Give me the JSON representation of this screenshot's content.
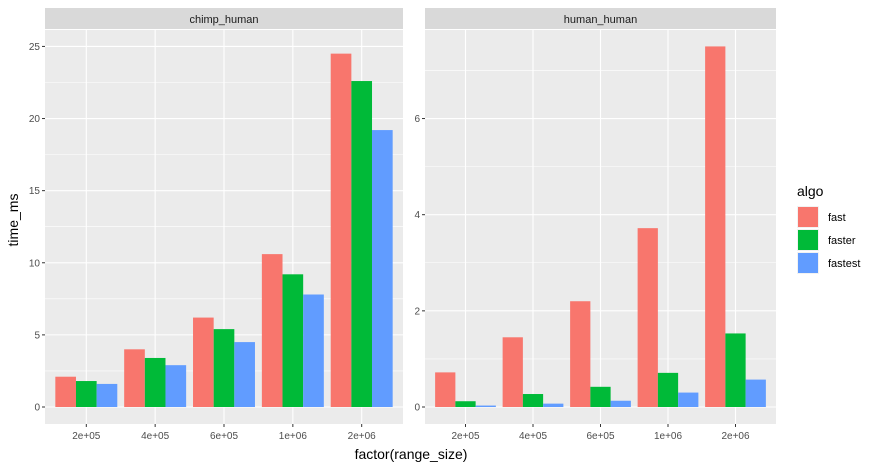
{
  "chart_data": {
    "type": "bar",
    "xlabel": "factor(range_size)",
    "ylabel": "time_ms",
    "categories": [
      "2e+05",
      "4e+05",
      "6e+05",
      "1e+06",
      "2e+06"
    ],
    "legend": {
      "title": "algo",
      "placement": "right",
      "entries": [
        {
          "name": "fast",
          "color": "#F8766D"
        },
        {
          "name": "faster",
          "color": "#00BA38"
        },
        {
          "name": "fastest",
          "color": "#619CFF"
        }
      ]
    },
    "grid": true,
    "facets": [
      {
        "strip": "chimp_human",
        "ylim": [
          0,
          26
        ],
        "yticks": [
          0,
          5,
          10,
          15,
          20,
          25
        ],
        "series": [
          {
            "name": "fast",
            "values": [
              2.1,
              4.0,
              6.2,
              10.6,
              24.5
            ]
          },
          {
            "name": "faster",
            "values": [
              1.8,
              3.4,
              5.4,
              9.2,
              22.6
            ]
          },
          {
            "name": "fastest",
            "values": [
              1.6,
              2.9,
              4.5,
              7.8,
              19.2
            ]
          }
        ]
      },
      {
        "strip": "human_human",
        "ylim": [
          0,
          7.8
        ],
        "yticks": [
          0,
          2,
          4,
          6
        ],
        "series": [
          {
            "name": "fast",
            "values": [
              0.72,
              1.45,
              2.2,
              3.72,
              7.5
            ]
          },
          {
            "name": "faster",
            "values": [
              0.12,
              0.27,
              0.42,
              0.71,
              1.53
            ]
          },
          {
            "name": "fastest",
            "values": [
              0.03,
              0.07,
              0.13,
              0.3,
              0.57
            ]
          }
        ]
      }
    ]
  }
}
